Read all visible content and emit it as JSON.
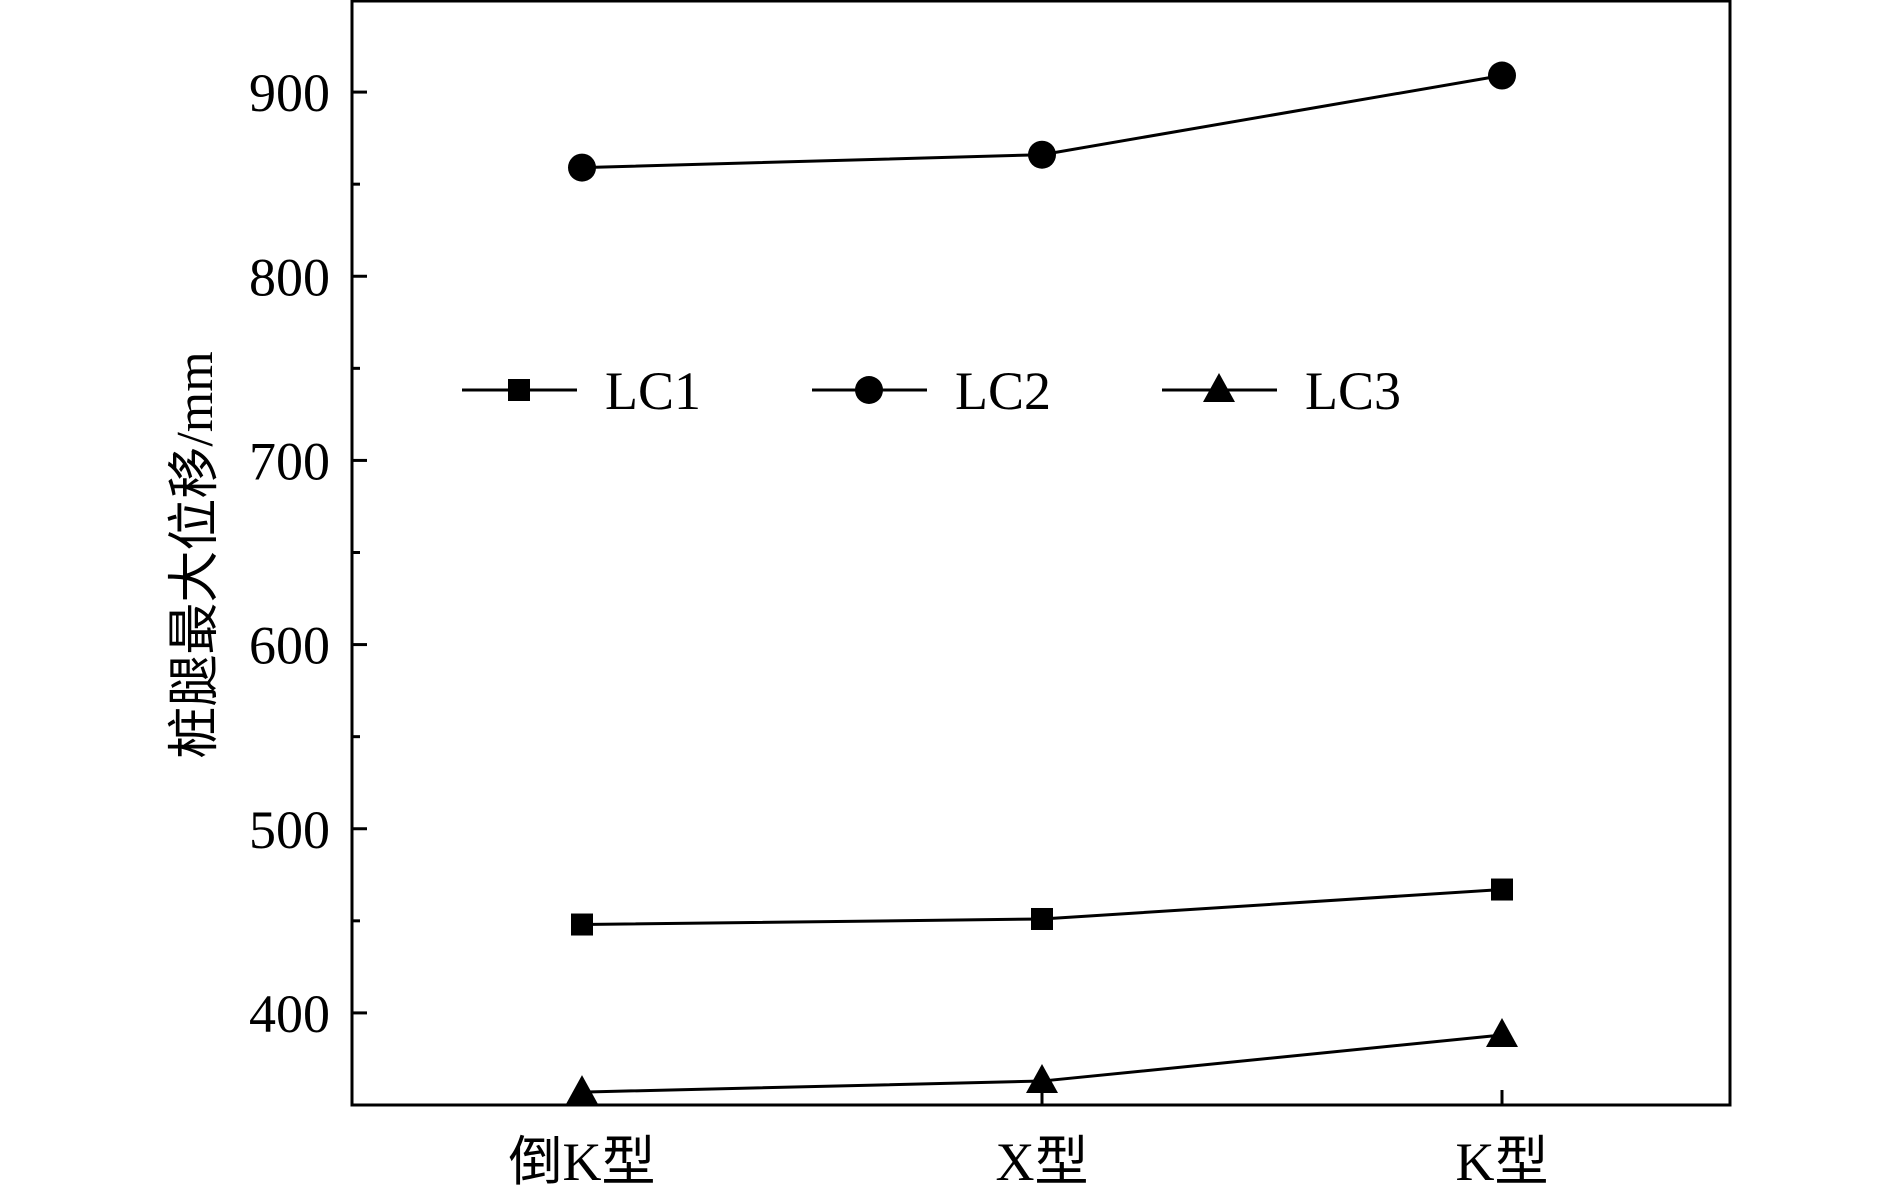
{
  "chart_data": {
    "type": "line",
    "title": "",
    "xlabel": "",
    "ylabel": "桩腿最大位移/mm",
    "categories": [
      "倒K型",
      "X型",
      "K型"
    ],
    "series": [
      {
        "name": "LC1",
        "marker": "square",
        "values": [
          448,
          451,
          467
        ]
      },
      {
        "name": "LC2",
        "marker": "circle",
        "values": [
          859,
          866,
          909
        ]
      },
      {
        "name": "LC3",
        "marker": "triangle",
        "values": [
          357,
          363,
          388
        ]
      }
    ],
    "ylim": [
      350,
      950
    ],
    "yticks": [
      400,
      500,
      600,
      700,
      800,
      900
    ],
    "grid": false,
    "legend_position": "top-left, horizontal",
    "colors": {
      "line": "#000000",
      "marker": "#000000",
      "axis": "#000000"
    }
  }
}
